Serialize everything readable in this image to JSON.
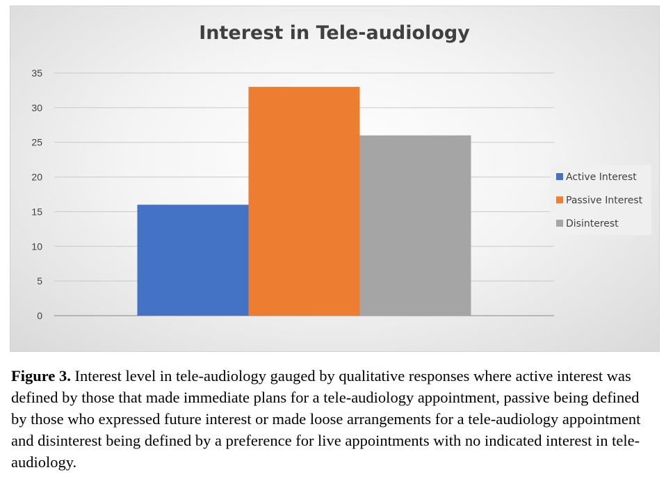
{
  "chart_data": {
    "type": "bar",
    "title": "Interest in Tele-audiology",
    "categories": [
      ""
    ],
    "series": [
      {
        "name": "Active Interest",
        "values": [
          16
        ],
        "color": "#4472C4"
      },
      {
        "name": "Passive Interest",
        "values": [
          33
        ],
        "color": "#ED7D31"
      },
      {
        "name": "Disinterest",
        "values": [
          26
        ],
        "color": "#A5A5A5"
      }
    ],
    "ylim": [
      0,
      35
    ],
    "yticks": [
      0,
      5,
      10,
      15,
      20,
      25,
      30,
      35
    ],
    "xlabel": "",
    "ylabel": "",
    "grid": true,
    "legend_position": "right"
  },
  "caption": {
    "label": "Figure 3.",
    "text": " Interest level in tele-audiology gauged by qualitative responses where active interest was defined by those that made immediate plans for a tele-audiology appointment, passive being defined by those who expressed future interest or made loose arrangements for a tele-audiology appointment and disinterest being defined by a preference for live appointments with no indicated interest in tele-audiology."
  }
}
